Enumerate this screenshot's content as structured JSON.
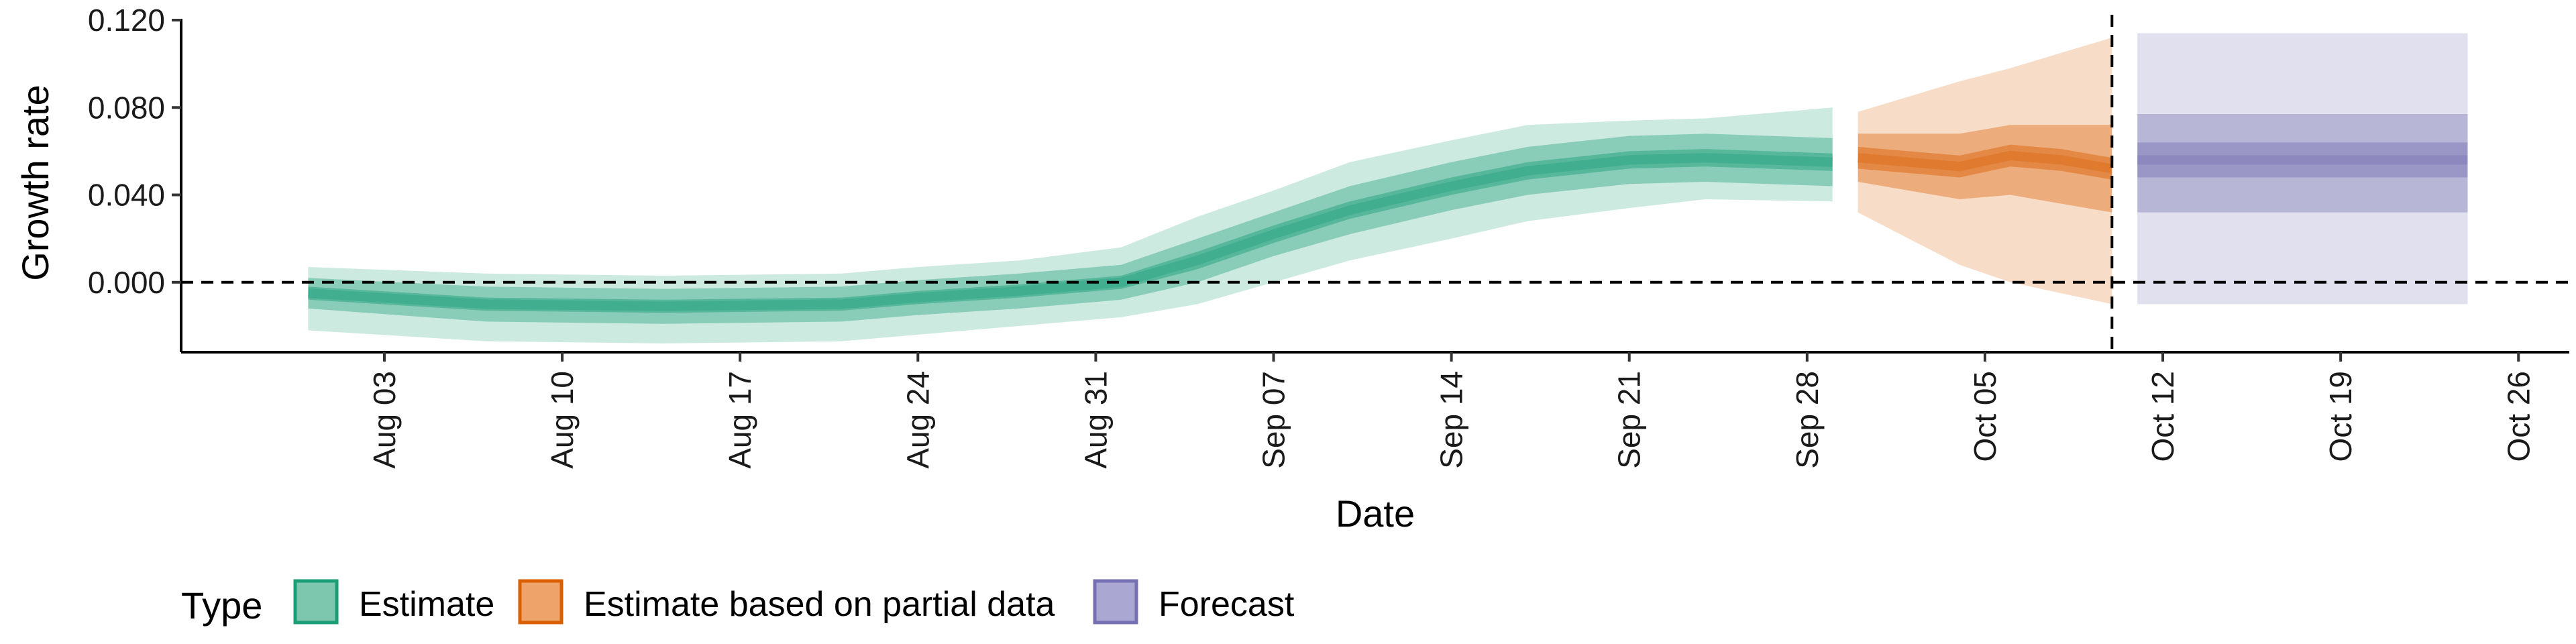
{
  "chart_data": {
    "type": "area",
    "xlabel": "Date",
    "ylabel": "Growth rate",
    "x_range": [
      "2020-07-26",
      "2020-10-28"
    ],
    "ylim": [
      -0.032,
      0.12
    ],
    "y_ticks": [
      {
        "value": 0.0,
        "label": "0.000"
      },
      {
        "value": 0.04,
        "label": "0.040"
      },
      {
        "value": 0.08,
        "label": "0.080"
      },
      {
        "value": 0.12,
        "label": "0.120"
      }
    ],
    "x_ticks": [
      {
        "date": "2020-08-03",
        "label": "Aug 03"
      },
      {
        "date": "2020-08-10",
        "label": "Aug 10"
      },
      {
        "date": "2020-08-17",
        "label": "Aug 17"
      },
      {
        "date": "2020-08-24",
        "label": "Aug 24"
      },
      {
        "date": "2020-08-31",
        "label": "Aug 31"
      },
      {
        "date": "2020-09-07",
        "label": "Sep 07"
      },
      {
        "date": "2020-09-14",
        "label": "Sep 14"
      },
      {
        "date": "2020-09-21",
        "label": "Sep 21"
      },
      {
        "date": "2020-09-28",
        "label": "Sep 28"
      },
      {
        "date": "2020-10-05",
        "label": "Oct 05"
      },
      {
        "date": "2020-10-12",
        "label": "Oct 12"
      },
      {
        "date": "2020-10-19",
        "label": "Oct 19"
      },
      {
        "date": "2020-10-26",
        "label": "Oct 26"
      }
    ],
    "reference_lines": [
      {
        "axis": "y",
        "value": 0.0,
        "style": "dashed"
      },
      {
        "axis": "x",
        "date": "2020-10-10",
        "style": "dashed"
      }
    ],
    "grid": false,
    "legend": {
      "position": "bottom-left",
      "title": "Type",
      "entries": [
        {
          "label": "Estimate",
          "fill": "#7cc7ad",
          "border": "#1b9e77"
        },
        {
          "label": "Estimate based on partial data",
          "fill": "#eda36a",
          "border": "#d95f02"
        },
        {
          "label": "Forecast",
          "fill": "#aaa8d2",
          "border": "#7570b3"
        }
      ]
    },
    "series": [
      {
        "name": "Estimate",
        "color": "#1b9e77",
        "x": [
          "2020-07-31",
          "2020-08-07",
          "2020-08-14",
          "2020-08-21",
          "2020-08-24",
          "2020-08-28",
          "2020-09-01",
          "2020-09-04",
          "2020-09-07",
          "2020-09-10",
          "2020-09-14",
          "2020-09-17",
          "2020-09-21",
          "2020-09-24",
          "2020-09-29"
        ],
        "median": [
          -0.005,
          -0.01,
          -0.011,
          -0.01,
          -0.007,
          -0.004,
          0.0,
          0.01,
          0.022,
          0.033,
          0.044,
          0.051,
          0.056,
          0.057,
          0.055
        ],
        "ci20": [
          [
            -0.008,
            -0.002
          ],
          [
            -0.013,
            -0.007
          ],
          [
            -0.014,
            -0.008
          ],
          [
            -0.013,
            -0.007
          ],
          [
            -0.01,
            -0.004
          ],
          [
            -0.007,
            -0.001
          ],
          [
            -0.003,
            0.003
          ],
          [
            0.006,
            0.014
          ],
          [
            0.018,
            0.026
          ],
          [
            0.029,
            0.037
          ],
          [
            0.04,
            0.048
          ],
          [
            0.047,
            0.055
          ],
          [
            0.052,
            0.06
          ],
          [
            0.053,
            0.061
          ],
          [
            0.051,
            0.059
          ]
        ],
        "ci50": [
          [
            -0.012,
            0.002
          ],
          [
            -0.018,
            -0.002
          ],
          [
            -0.019,
            -0.003
          ],
          [
            -0.018,
            -0.002
          ],
          [
            -0.015,
            0.001
          ],
          [
            -0.012,
            0.004
          ],
          [
            -0.008,
            0.008
          ],
          [
            0.0,
            0.02
          ],
          [
            0.012,
            0.032
          ],
          [
            0.022,
            0.044
          ],
          [
            0.033,
            0.055
          ],
          [
            0.04,
            0.062
          ],
          [
            0.045,
            0.067
          ],
          [
            0.046,
            0.068
          ],
          [
            0.044,
            0.066
          ]
        ],
        "ci90": [
          [
            -0.022,
            0.007
          ],
          [
            -0.027,
            0.004
          ],
          [
            -0.028,
            0.003
          ],
          [
            -0.027,
            0.004
          ],
          [
            -0.024,
            0.007
          ],
          [
            -0.02,
            0.01
          ],
          [
            -0.016,
            0.016
          ],
          [
            -0.01,
            0.03
          ],
          [
            0.0,
            0.042
          ],
          [
            0.01,
            0.055
          ],
          [
            0.02,
            0.065
          ],
          [
            0.028,
            0.072
          ],
          [
            0.034,
            0.074
          ],
          [
            0.038,
            0.075
          ],
          [
            0.037,
            0.08
          ]
        ]
      },
      {
        "name": "Estimate based on partial data",
        "color": "#d95f02",
        "x": [
          "2020-09-30",
          "2020-10-02",
          "2020-10-04",
          "2020-10-06",
          "2020-10-08",
          "2020-10-10"
        ],
        "median": [
          0.057,
          0.055,
          0.053,
          0.058,
          0.056,
          0.052
        ],
        "ci20": [
          [
            0.052,
            0.062
          ],
          [
            0.05,
            0.06
          ],
          [
            0.048,
            0.058
          ],
          [
            0.053,
            0.063
          ],
          [
            0.051,
            0.061
          ],
          [
            0.047,
            0.057
          ]
        ],
        "ci50": [
          [
            0.046,
            0.068
          ],
          [
            0.042,
            0.068
          ],
          [
            0.038,
            0.068
          ],
          [
            0.04,
            0.072
          ],
          [
            0.036,
            0.072
          ],
          [
            0.032,
            0.072
          ]
        ],
        "ci90": [
          [
            0.032,
            0.078
          ],
          [
            0.02,
            0.085
          ],
          [
            0.008,
            0.092
          ],
          [
            0.0,
            0.098
          ],
          [
            -0.005,
            0.105
          ],
          [
            -0.01,
            0.112
          ]
        ]
      },
      {
        "name": "Forecast",
        "color": "#7570b3",
        "x": [
          "2020-10-11",
          "2020-10-24"
        ],
        "median": [
          0.056,
          0.056
        ],
        "ci20": [
          [
            0.048,
            0.064
          ],
          [
            0.048,
            0.064
          ]
        ],
        "ci50": [
          [
            0.032,
            0.077
          ],
          [
            0.032,
            0.077
          ]
        ],
        "ci90": [
          [
            -0.01,
            0.114
          ],
          [
            -0.01,
            0.114
          ]
        ]
      }
    ]
  }
}
